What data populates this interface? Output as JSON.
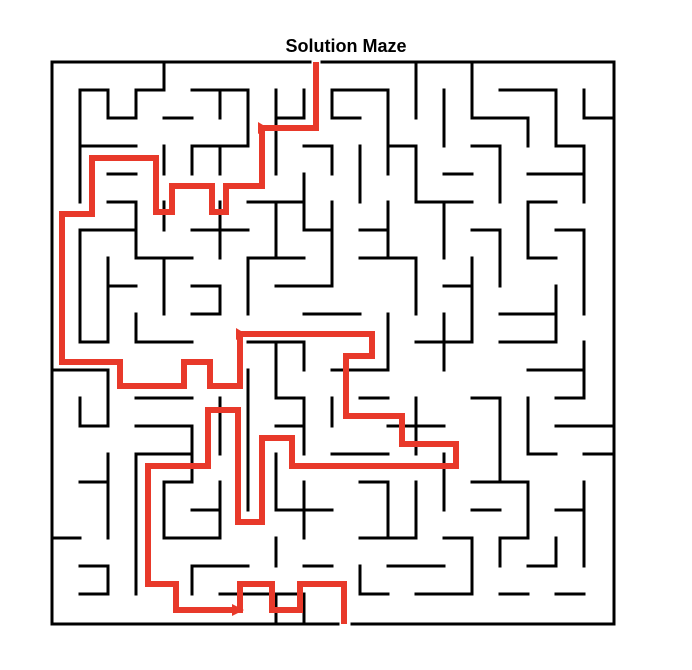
{
  "title": "Solution Maze",
  "maze": {
    "rows": 20,
    "cols": 20,
    "entrance_col": 9,
    "exit_col": 10,
    "wall_color": "#000000",
    "path_color": "#e8392a"
  }
}
